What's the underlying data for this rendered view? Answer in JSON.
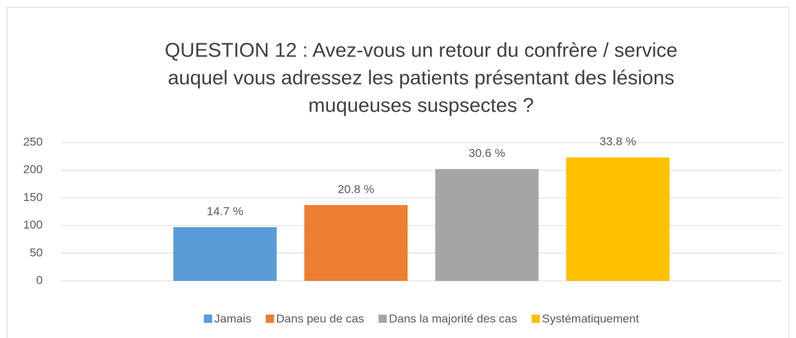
{
  "chart_data": {
    "type": "bar",
    "title": [
      "QUESTION 12 : Avez-vous un retour du confrère / service",
      "auquel vous adressez les patients présentant des lésions",
      "muqueuses suspsectes ?"
    ],
    "categories": [
      null
    ],
    "series": [
      {
        "name": "Jamais",
        "color": "#5b9bd5",
        "values": [
          97
        ],
        "labels": [
          "14.7 %"
        ]
      },
      {
        "name": "Dans peu de cas",
        "color": "#ed7d31",
        "values": [
          137
        ],
        "labels": [
          "20.8 %"
        ]
      },
      {
        "name": "Dans la majorité des cas",
        "color": "#a5a5a5",
        "values": [
          202
        ],
        "labels": [
          "30.6 %"
        ]
      },
      {
        "name": "Systématiquement",
        "color": "#ffc000",
        "values": [
          223
        ],
        "labels": [
          "33.8 %"
        ]
      }
    ],
    "ylim": [
      0,
      250
    ],
    "yticks": [
      0,
      50,
      100,
      150,
      200,
      250
    ],
    "grid": true,
    "legend": "bottom"
  }
}
